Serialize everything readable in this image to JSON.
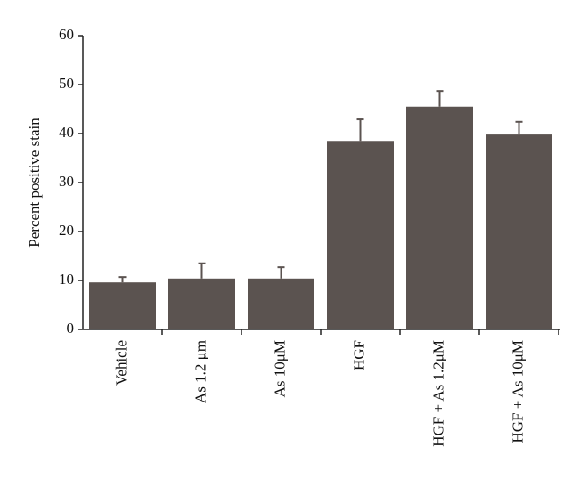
{
  "chart_data": {
    "type": "bar",
    "y_label": "Percent positive stain",
    "categories": [
      "Vehicle",
      "As 1.2 μm",
      "As 10μM",
      "HGF",
      "HGF + As 1.2μM",
      "HGF + As 10μM"
    ],
    "values": [
      9.6,
      10.4,
      10.4,
      38.5,
      45.5,
      39.8
    ],
    "errors": [
      1.1,
      3.1,
      2.3,
      4.4,
      3.2,
      2.6
    ],
    "color": "#5b5350",
    "ylim": [
      0,
      60
    ],
    "yticks": [
      0,
      10,
      20,
      30,
      40,
      50,
      60
    ],
    "grid": false
  }
}
